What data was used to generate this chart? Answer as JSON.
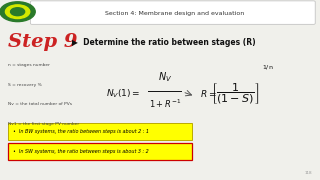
{
  "bg_color": "#f0f0eb",
  "header_text": "Section 4: Membrane design and evaluation",
  "step_text": "Step 9",
  "step_color": "#cc2222",
  "title_text": "▶  Determine the ratio between stages (R)",
  "small_labels": [
    "n = stages number",
    "S = recovery %",
    "Nv = the total number of PVs",
    "Nv1 = the first stage PV number"
  ],
  "bullet1_text": "In BW systems, the ratio between steps is about 2 : 1",
  "bullet1_bg": "#ffff00",
  "bullet1_border": "#bbaa00",
  "bullet2_text": "In SW systems, the ratio between steps is about 3 : 2",
  "bullet2_bg": "#ffff00",
  "bullet2_border": "#cc0000",
  "page_number": "118",
  "header_border": "#bbbbbb",
  "formula_color": "#111111"
}
